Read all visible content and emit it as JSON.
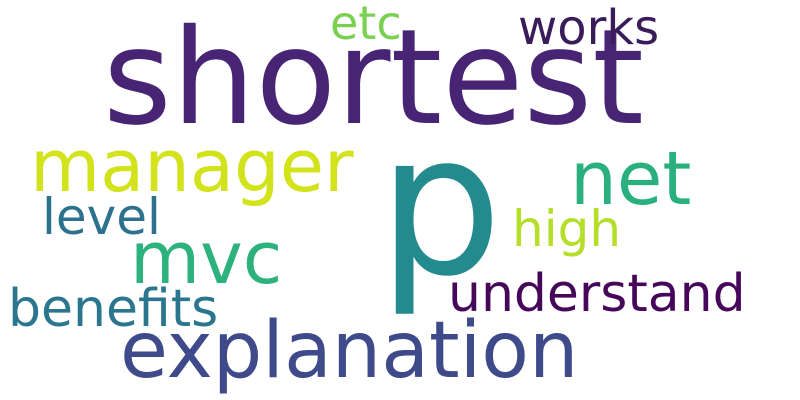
{
  "words": [
    {
      "text": "shortest",
      "color": "#482475"
    },
    {
      "text": "p",
      "color": "#238a8d"
    },
    {
      "text": "explanation",
      "color": "#3e4a89"
    },
    {
      "text": "manager",
      "color": "#d2e21b"
    },
    {
      "text": "net",
      "color": "#2ab07f"
    },
    {
      "text": "mvc",
      "color": "#2db27d"
    },
    {
      "text": "understand",
      "color": "#46075a"
    },
    {
      "text": "benefits",
      "color": "#2a768e"
    },
    {
      "text": "level",
      "color": "#2c728e"
    },
    {
      "text": "high",
      "color": "#b5de2b"
    },
    {
      "text": "works",
      "color": "#3b1c5a"
    },
    {
      "text": "etc",
      "color": "#7ad151"
    }
  ]
}
